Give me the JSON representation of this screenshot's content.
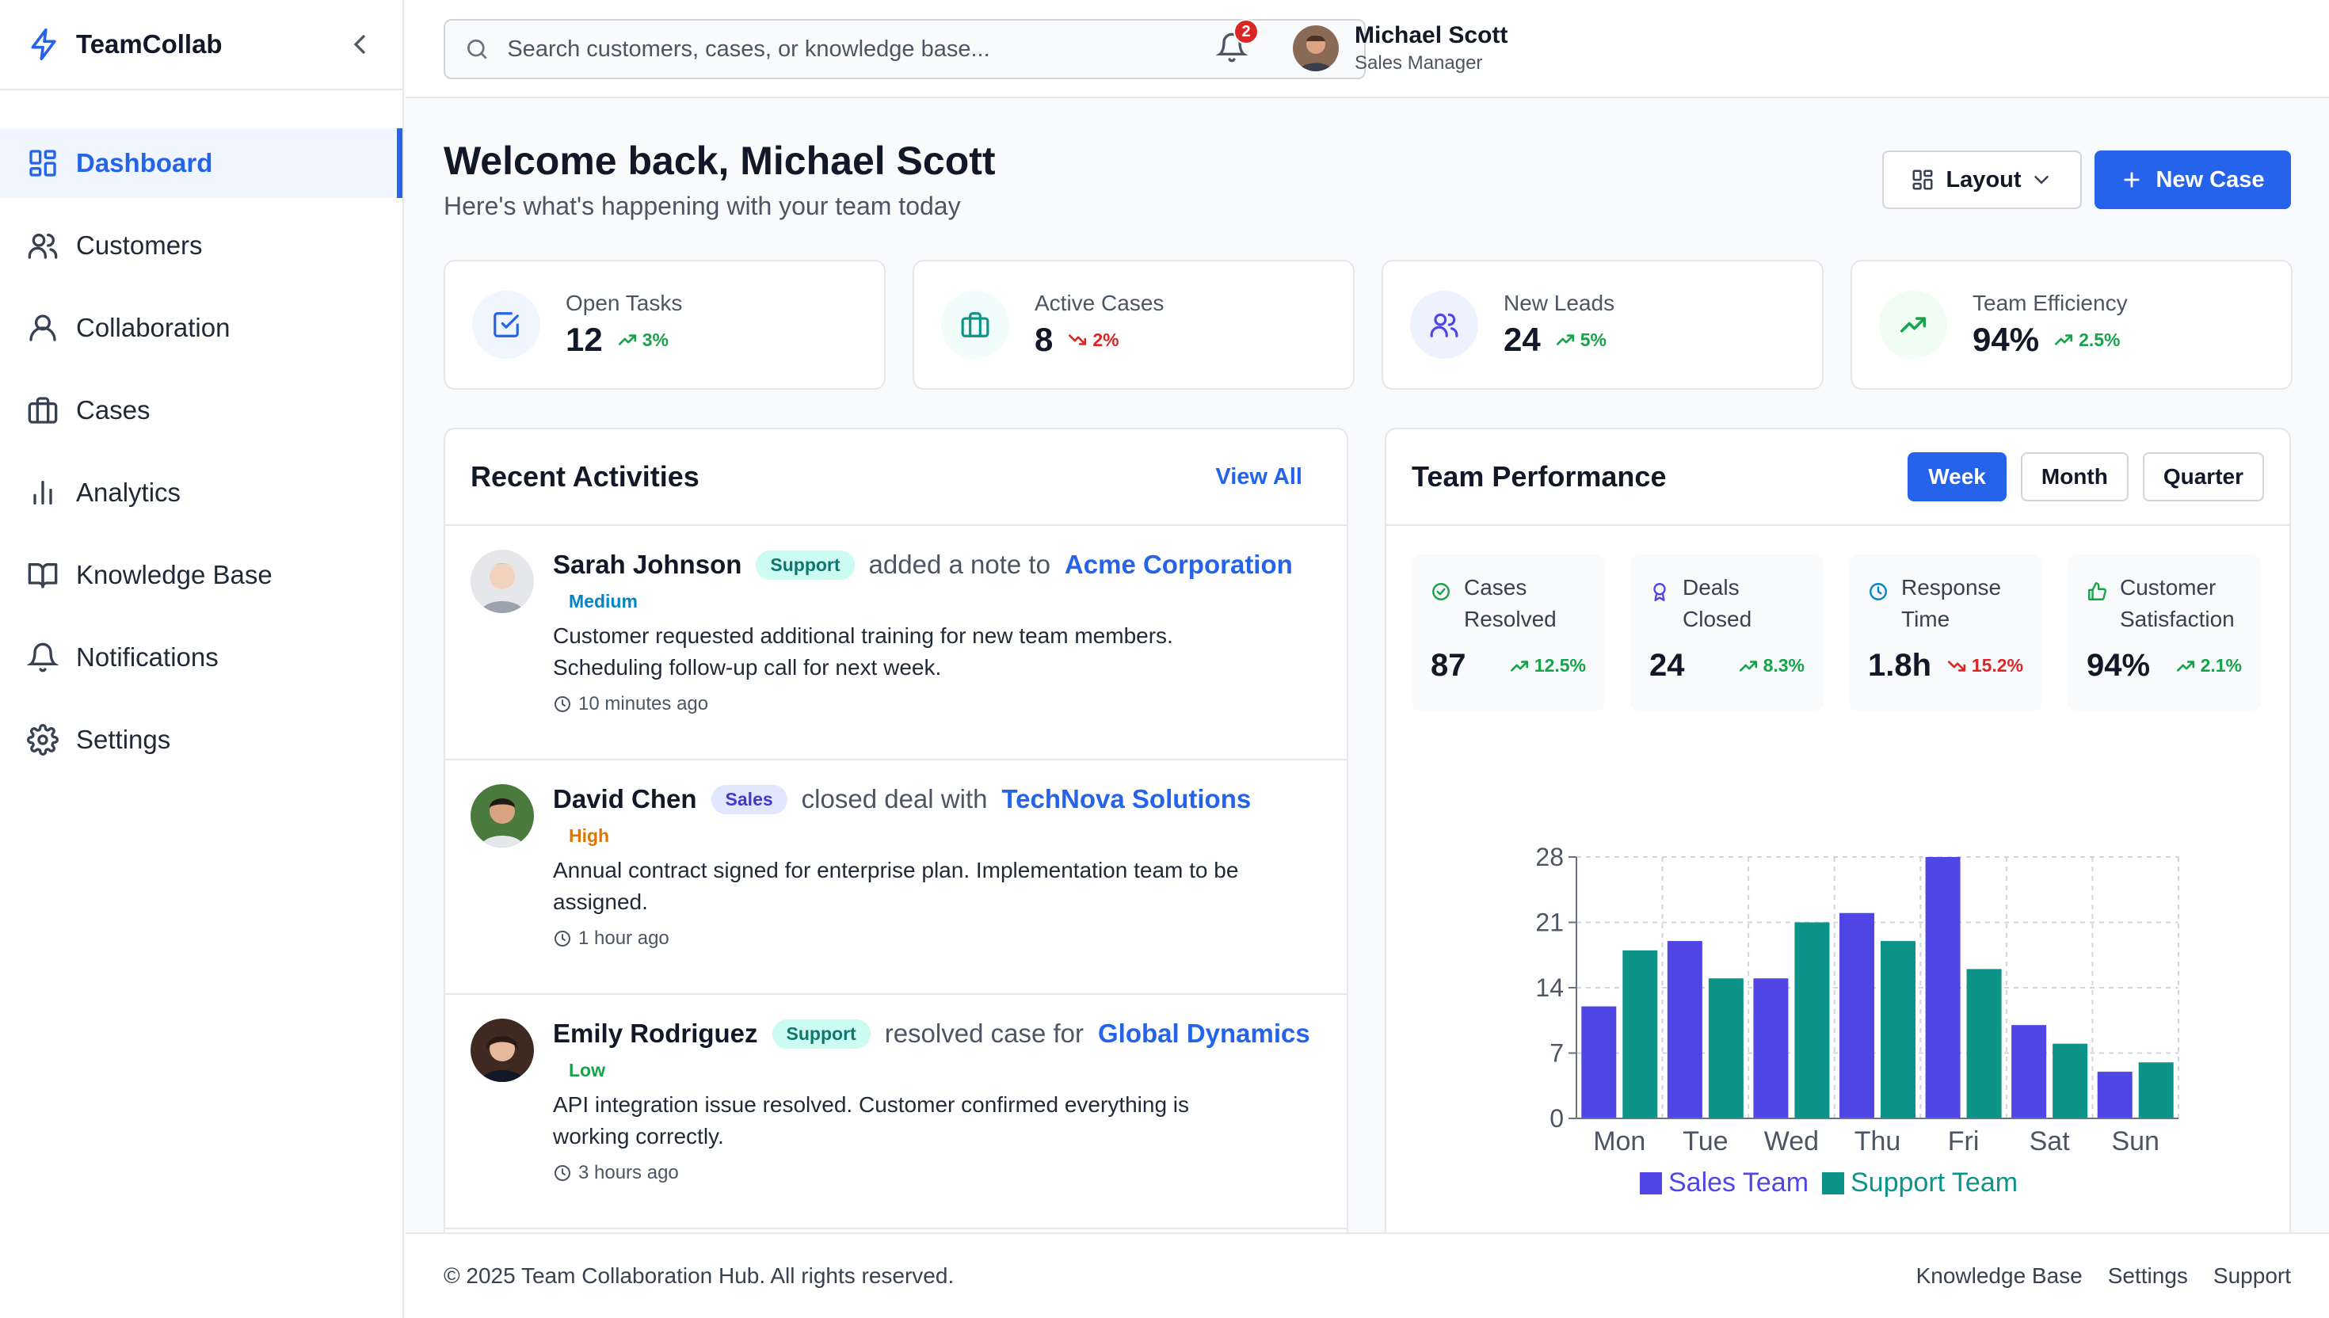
{
  "brand": {
    "name": "TeamCollab"
  },
  "sidebar": {
    "items": [
      {
        "label": "Dashboard",
        "icon": "grid-icon",
        "active": true
      },
      {
        "label": "Customers",
        "icon": "users-icon"
      },
      {
        "label": "Collaboration",
        "icon": "user-icon"
      },
      {
        "label": "Cases",
        "icon": "briefcase-icon"
      },
      {
        "label": "Analytics",
        "icon": "bar-chart-icon"
      },
      {
        "label": "Knowledge Base",
        "icon": "book-icon"
      },
      {
        "label": "Notifications",
        "icon": "bell-icon"
      },
      {
        "label": "Settings",
        "icon": "gear-icon"
      }
    ]
  },
  "header": {
    "search_placeholder": "Search customers, cases, or knowledge base...",
    "notification_count": "2",
    "user": {
      "name": "Michael Scott",
      "role": "Sales Manager"
    }
  },
  "welcome": {
    "title": "Welcome back, Michael Scott",
    "subtitle": "Here's what's happening with your team today"
  },
  "actions": {
    "layout_label": "Layout",
    "new_case_label": "New Case"
  },
  "stats": [
    {
      "label": "Open Tasks",
      "value": "12",
      "trend": "3%",
      "direction": "up",
      "color": "#2563eb",
      "bg": "#eff6ff"
    },
    {
      "label": "Active Cases",
      "value": "8",
      "trend": "2%",
      "direction": "down",
      "color": "#0d9488",
      "bg": "#f0fdfa"
    },
    {
      "label": "New Leads",
      "value": "24",
      "trend": "5%",
      "direction": "up",
      "color": "#4f46e5",
      "bg": "#eef2ff"
    },
    {
      "label": "Team Efficiency",
      "value": "94%",
      "trend": "2.5%",
      "direction": "up",
      "color": "#16a34a",
      "bg": "#f0fdf4"
    }
  ],
  "activities": {
    "title": "Recent Activities",
    "view_all": "View All",
    "items": [
      {
        "name": "Sarah Johnson",
        "tag": "Support",
        "verb": "added a note to",
        "target": "Acme Corporation",
        "priority": "Medium",
        "description": "Customer requested additional training for new team members. Scheduling follow-up call for next week.",
        "time": "10 minutes ago"
      },
      {
        "name": "David Chen",
        "tag": "Sales",
        "verb": "closed deal with",
        "target": "TechNova Solutions",
        "priority": "High",
        "description": "Annual contract signed for enterprise plan. Implementation team to be assigned.",
        "time": "1 hour ago"
      },
      {
        "name": "Emily Rodriguez",
        "tag": "Support",
        "verb": "resolved case for",
        "target": "Global Dynamics",
        "priority": "Low",
        "description": "API integration issue resolved. Customer confirmed everything is working correctly.",
        "time": "3 hours ago"
      }
    ]
  },
  "performance": {
    "title": "Team Performance",
    "periods": [
      "Week",
      "Month",
      "Quarter"
    ],
    "active_period": "Week",
    "metrics": [
      {
        "label": "Cases Resolved",
        "value": "87",
        "trend": "12.5%",
        "direction": "up",
        "icon": "check-circle-icon"
      },
      {
        "label": "Deals Closed",
        "value": "24",
        "trend": "8.3%",
        "direction": "up",
        "icon": "award-icon"
      },
      {
        "label": "Response Time",
        "value": "1.8h",
        "trend": "15.2%",
        "direction": "down",
        "icon": "clock-icon"
      },
      {
        "label": "Customer Satisfaction",
        "value": "94%",
        "trend": "2.1%",
        "direction": "up",
        "icon": "thumbs-up-icon"
      }
    ]
  },
  "chart_data": {
    "type": "bar",
    "categories": [
      "Mon",
      "Tue",
      "Wed",
      "Thu",
      "Fri",
      "Sat",
      "Sun"
    ],
    "series": [
      {
        "name": "Sales Team",
        "color": "#4f46e5",
        "values": [
          12,
          19,
          15,
          22,
          28,
          10,
          5
        ]
      },
      {
        "name": "Support Team",
        "color": "#0d9488",
        "values": [
          18,
          15,
          21,
          19,
          16,
          8,
          6
        ]
      }
    ],
    "yticks": [
      0,
      7,
      14,
      21,
      28
    ],
    "ylim": [
      0,
      28
    ],
    "grid": true,
    "legend": "bottom"
  },
  "footer": {
    "copyright": "© 2025 Team Collaboration Hub. All rights reserved.",
    "links": [
      "Knowledge Base",
      "Settings",
      "Support"
    ]
  }
}
